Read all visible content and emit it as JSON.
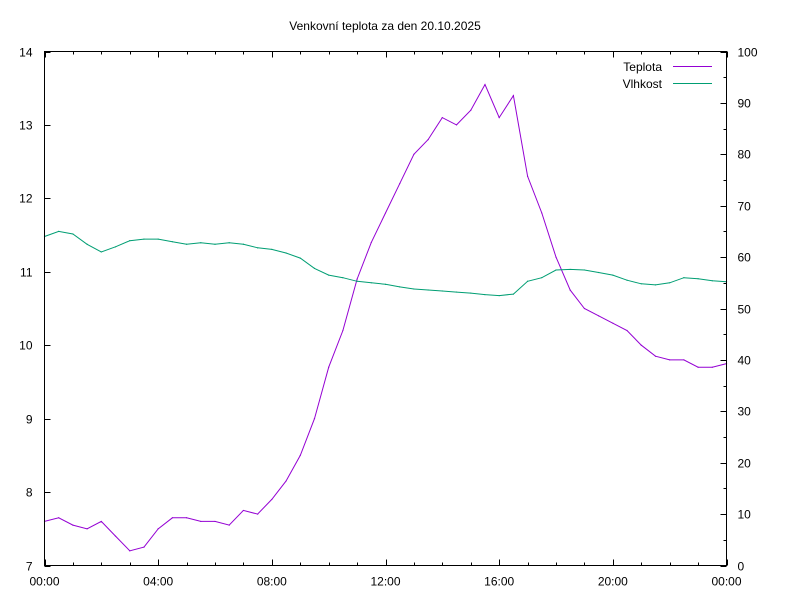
{
  "chart_data": {
    "type": "line",
    "title": "Venkovní teplota za den 20.10.2025",
    "xlabel": "",
    "ylabel": "",
    "y2label": "",
    "xlim": [
      0,
      24
    ],
    "ylim": [
      7,
      14
    ],
    "y2lim": [
      0,
      100
    ],
    "x_ticks": [
      0,
      4,
      8,
      12,
      16,
      20,
      24
    ],
    "x_tick_labels": [
      "00:00",
      "04:00",
      "08:00",
      "12:00",
      "16:00",
      "20:00",
      "00:00"
    ],
    "y_ticks": [
      7,
      8,
      9,
      10,
      11,
      12,
      13,
      14
    ],
    "y_tick_labels": [
      "7",
      "8",
      "9",
      "10",
      "11",
      "12",
      "13",
      "14"
    ],
    "y2_ticks": [
      0,
      10,
      20,
      30,
      40,
      50,
      60,
      70,
      80,
      90,
      100
    ],
    "y2_tick_labels": [
      "0",
      "10",
      "20",
      "30",
      "40",
      "50",
      "60",
      "70",
      "80",
      "90",
      "100"
    ],
    "grid": false,
    "legend_position": "top-right",
    "series": [
      {
        "name": "Teplota",
        "axis": "left",
        "color": "#9400d3",
        "x": [
          0,
          0.5,
          1,
          1.5,
          2,
          2.5,
          3,
          3.5,
          4,
          4.5,
          5,
          5.5,
          6,
          6.5,
          7,
          7.5,
          8,
          8.5,
          9,
          9.5,
          10,
          10.5,
          11,
          11.5,
          12,
          12.5,
          13,
          13.5,
          14,
          14.5,
          15,
          15.5,
          16,
          16.5,
          17,
          17.5,
          18,
          18.5,
          19,
          19.5,
          20,
          20.5,
          21,
          21.5,
          22,
          22.5,
          23,
          23.5,
          24
        ],
        "values": [
          7.6,
          7.65,
          7.55,
          7.5,
          7.6,
          7.4,
          7.2,
          7.25,
          7.5,
          7.65,
          7.65,
          7.6,
          7.6,
          7.55,
          7.75,
          7.7,
          7.9,
          8.15,
          8.5,
          9.0,
          9.7,
          10.2,
          10.9,
          11.4,
          11.8,
          12.2,
          12.6,
          12.8,
          13.1,
          13.0,
          13.2,
          13.55,
          13.1,
          13.4,
          12.3,
          11.8,
          11.2,
          10.75,
          10.5,
          10.4,
          10.3,
          10.2,
          10.0,
          9.85,
          9.8,
          9.8,
          9.7,
          9.7,
          9.75
        ]
      },
      {
        "name": "Vlhkost",
        "axis": "right",
        "color": "#009e73",
        "x": [
          0,
          0.5,
          1,
          1.5,
          2,
          2.5,
          3,
          3.5,
          4,
          4.5,
          5,
          5.5,
          6,
          6.5,
          7,
          7.5,
          8,
          8.5,
          9,
          9.5,
          10,
          10.5,
          11,
          11.5,
          12,
          12.5,
          13,
          13.5,
          14,
          14.5,
          15,
          15.5,
          16,
          16.5,
          17,
          17.5,
          18,
          18.5,
          19,
          19.5,
          20,
          20.5,
          21,
          21.5,
          22,
          22.5,
          23,
          23.5,
          24
        ],
        "values": [
          64,
          65,
          64.5,
          62.5,
          61,
          62,
          63.2,
          63.5,
          63.5,
          63,
          62.5,
          62.8,
          62.5,
          62.8,
          62.5,
          61.8,
          61.5,
          60.8,
          59.8,
          57.8,
          56.5,
          56,
          55.3,
          55,
          54.7,
          54.2,
          53.8,
          53.6,
          53.4,
          53.2,
          53,
          52.7,
          52.5,
          52.8,
          55.3,
          56,
          57.5,
          57.6,
          57.5,
          57,
          56.5,
          55.5,
          54.8,
          54.6,
          55,
          56,
          55.8,
          55.4,
          55.2
        ]
      }
    ]
  }
}
